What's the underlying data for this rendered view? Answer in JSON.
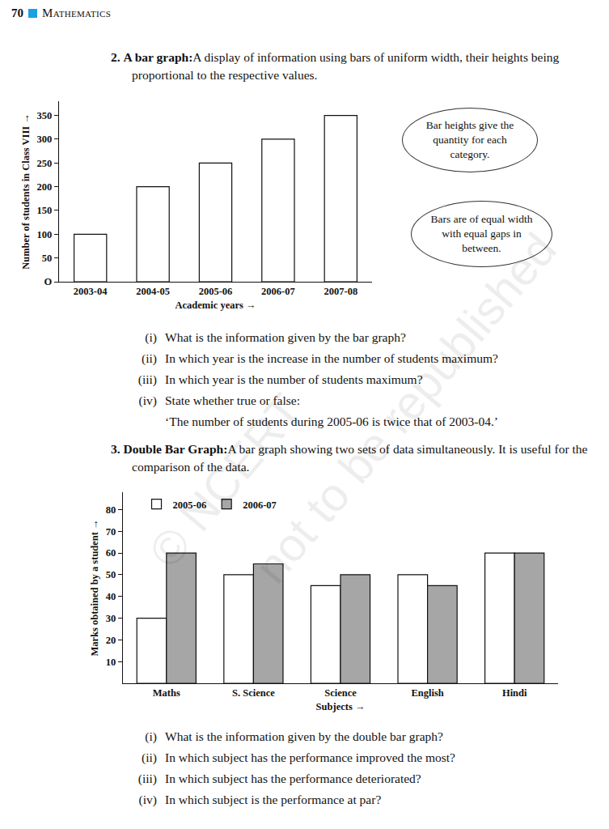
{
  "page_header": {
    "page_number": "70",
    "book": "Mathematics"
  },
  "watermark": [
    "© NCERT",
    "not to be republished"
  ],
  "sections": [
    {
      "number": "2.",
      "term": "A bar graph:",
      "description": "A display of information using bars of uniform width, their heights being proportional to the respective values.",
      "callouts": [
        "Bar heights give the quantity for each category.",
        "Bars are of equal width with equal gaps in between."
      ],
      "questions": [
        {
          "label": "(i)",
          "text": "What is the information given by the bar graph?"
        },
        {
          "label": "(ii)",
          "text": "In which year is the increase in the number of students maximum?"
        },
        {
          "label": "(iii)",
          "text": "In which year is the number of students maximum?"
        },
        {
          "label": "(iv)",
          "text": "State whether true or false:",
          "quote": "‘The number of students during 2005-06 is twice that of 2003-04.’"
        }
      ]
    },
    {
      "number": "3.",
      "term": "Double Bar Graph:",
      "description": "A bar graph showing two sets of data simultaneously. It is useful for the comparison of the data.",
      "callouts": [],
      "questions": [
        {
          "label": "(i)",
          "text": "What is the information given by the double bar graph?"
        },
        {
          "label": "(ii)",
          "text": "In which subject has the performance improved the most?"
        },
        {
          "label": "(iii)",
          "text": "In which subject has the performance deteriorated?"
        },
        {
          "label": "(iv)",
          "text": "In which subject is the performance at par?"
        }
      ]
    }
  ],
  "chart_data": [
    {
      "type": "bar",
      "x_label": "Academic years →",
      "y_label": "Number of students in Class VIII →",
      "categories": [
        "2003-04",
        "2004-05",
        "2005-06",
        "2006-07",
        "2007-08"
      ],
      "values": [
        100,
        200,
        250,
        300,
        350
      ],
      "color": "#ffffff",
      "ylim": [
        0,
        380
      ],
      "yticks": [
        {
          "value": 0,
          "label": "O"
        },
        50,
        100,
        150,
        200,
        250,
        300,
        350
      ],
      "grid": false
    },
    {
      "type": "bar",
      "x_label": "Subjects →",
      "y_label": "Marks obtained by a student →",
      "categories": [
        "Maths",
        "S. Science",
        "Science",
        "English",
        "Hindi"
      ],
      "series": [
        {
          "name": "2005-06",
          "color": "#ffffff",
          "values": [
            30,
            50,
            45,
            50,
            60
          ]
        },
        {
          "name": "2006-07",
          "color": "#a6a6a6",
          "values": [
            60,
            55,
            50,
            45,
            60
          ]
        }
      ],
      "ylim": [
        0,
        88
      ],
      "yticks": [
        10,
        20,
        30,
        40,
        50,
        60,
        70,
        80
      ],
      "grid": false,
      "legend": "top-left"
    }
  ]
}
